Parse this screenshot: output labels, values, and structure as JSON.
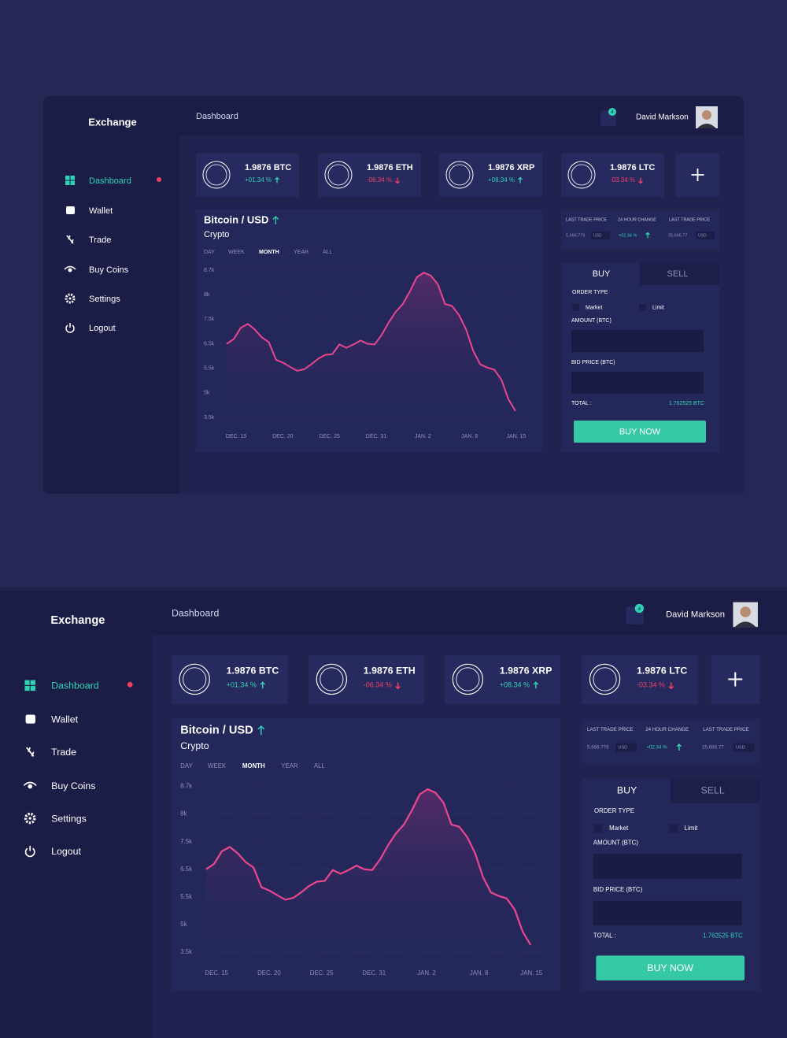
{
  "brand": "Exchange",
  "header": {
    "title": "Dashboard",
    "notifications": "4",
    "user": "David Markson"
  },
  "nav": [
    {
      "label": "Dashboard",
      "active": true,
      "alert": true
    },
    {
      "label": "Wallet"
    },
    {
      "label": "Trade"
    },
    {
      "label": "Buy Coins"
    },
    {
      "label": "Settings"
    },
    {
      "label": "Logout"
    }
  ],
  "tickers": [
    {
      "amount": "1.9876 BTC",
      "change": "+01.34 %",
      "direction": "up"
    },
    {
      "amount": "1.9876 ETH",
      "change": "-06.34 %",
      "direction": "down"
    },
    {
      "amount": "1.9876 XRP",
      "change": "+08.34 %",
      "direction": "up"
    },
    {
      "amount": "1.9876 LTC",
      "change": "-03.34 %",
      "direction": "down"
    }
  ],
  "chart": {
    "type": "line",
    "title": "Bitcoin / USD",
    "subtitle": "Crypto",
    "ranges": [
      "DAY",
      "WEEK",
      "MONTH",
      "YEAR",
      "ALL"
    ],
    "active_range": 2,
    "yticks": [
      {
        "value": 3500,
        "label": "3.5k"
      },
      {
        "value": 5000,
        "label": "5k"
      },
      {
        "value": 5500,
        "label": "5.5k"
      },
      {
        "value": 6500,
        "label": "6.5k"
      },
      {
        "value": 7500,
        "label": "7.5k"
      },
      {
        "value": 8000,
        "label": "8k"
      },
      {
        "value": 8700,
        "label": "8.7k"
      }
    ],
    "x_labels": [
      "DEC. 15",
      "DEC. 20",
      "DEC. 25",
      "DEC. 31",
      "JAN. 2",
      "JAN. 8",
      "JAN. 15"
    ],
    "values": [
      6500,
      6690,
      7150,
      7310,
      7080,
      6760,
      6560,
      5850,
      5730,
      5560,
      5450,
      5480,
      5660,
      5890,
      6050,
      6080,
      6470,
      6340,
      6470,
      6630,
      6500,
      6470,
      6860,
      7370,
      7650,
      7810,
      8090,
      8500,
      8630,
      8540,
      8290,
      7810,
      7770,
      7580,
      7080,
      6210,
      5660,
      5530,
      5470,
      5270,
      4610,
      3890
    ],
    "color": "#e8468e",
    "grid": true
  },
  "stats": {
    "headers": [
      "LAST TRADE PRICE",
      "24 HOUR CHANGE",
      "LAST TRADE PRICE"
    ],
    "price_1": "5,666.776",
    "currency_1": "USD",
    "change": "+02.34 %",
    "price_2": "25,666.77",
    "currency_2": "USD"
  },
  "order": {
    "tabs": [
      "BUY",
      "SELL"
    ],
    "order_type": "ORDER TYPE",
    "options": [
      "Market",
      "Limit"
    ],
    "amount_label": "AMOUNT (BTC)",
    "bid_label": "BID PRICE (BTC)",
    "total_label": "TOTAL :",
    "total": "1.762525 BTC",
    "button": "BUY NOW"
  }
}
